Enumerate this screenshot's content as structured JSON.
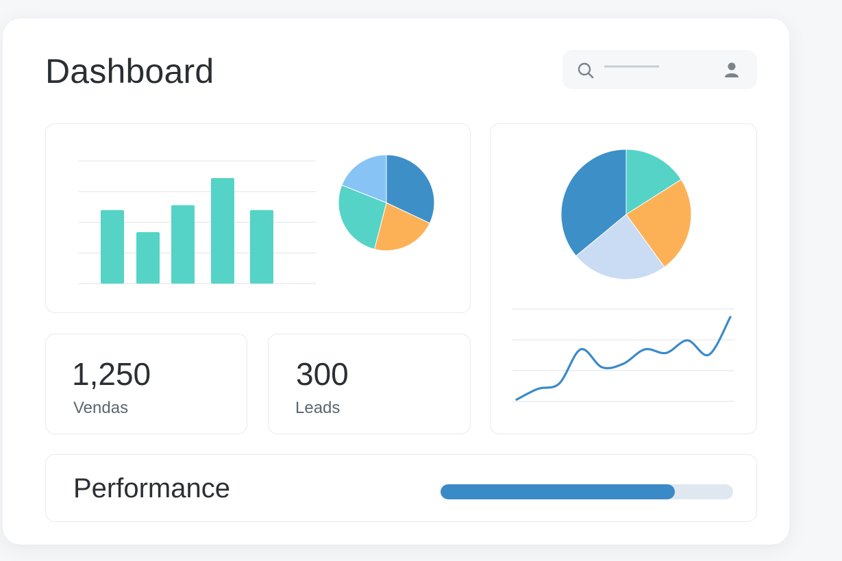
{
  "header": {
    "title": "Dashboard",
    "search_placeholder": ""
  },
  "icons": {
    "search": "search-icon",
    "user": "user-icon"
  },
  "colors": {
    "teal": "#54d3c6",
    "blue": "#3d8fc8",
    "light_blue": "#87c3f5",
    "pale_blue": "#c9dcf3",
    "orange": "#fdb157",
    "grid": "#e4e7ea",
    "progress_fill": "#3b8ac8",
    "progress_track": "#dfe8f1"
  },
  "stats": [
    {
      "value": "1,250",
      "label": "Vendas"
    },
    {
      "value": "300",
      "label": "Leads"
    }
  ],
  "performance": {
    "label": "Performance",
    "progress": 0.8
  },
  "chart_data": [
    {
      "type": "bar",
      "categories": [
        "",
        "",
        "",
        "",
        ""
      ],
      "values": [
        60,
        42,
        64,
        86,
        60
      ],
      "ylim": [
        0,
        100
      ],
      "grid": true,
      "title": "",
      "xlabel": "",
      "ylabel": ""
    },
    {
      "type": "pie",
      "slices": [
        {
          "value": 32,
          "color": "#3d8fc8"
        },
        {
          "value": 22,
          "color": "#fdb157"
        },
        {
          "value": 27,
          "color": "#54d3c6"
        },
        {
          "value": 19,
          "color": "#87c3f5"
        }
      ]
    },
    {
      "type": "pie",
      "slices": [
        {
          "value": 16,
          "color": "#54d3c6"
        },
        {
          "value": 24,
          "color": "#fdb157"
        },
        {
          "value": 24,
          "color": "#c9dcf3"
        },
        {
          "value": 36,
          "color": "#3d8fc8"
        }
      ]
    },
    {
      "type": "line",
      "x": [
        0,
        1,
        2,
        3,
        4,
        5,
        6,
        7,
        8,
        9,
        10
      ],
      "values": [
        2,
        14,
        20,
        58,
        38,
        42,
        58,
        54,
        68,
        52,
        94
      ],
      "ylim": [
        0,
        100
      ],
      "grid": true,
      "color": "#3b8ac8"
    }
  ]
}
